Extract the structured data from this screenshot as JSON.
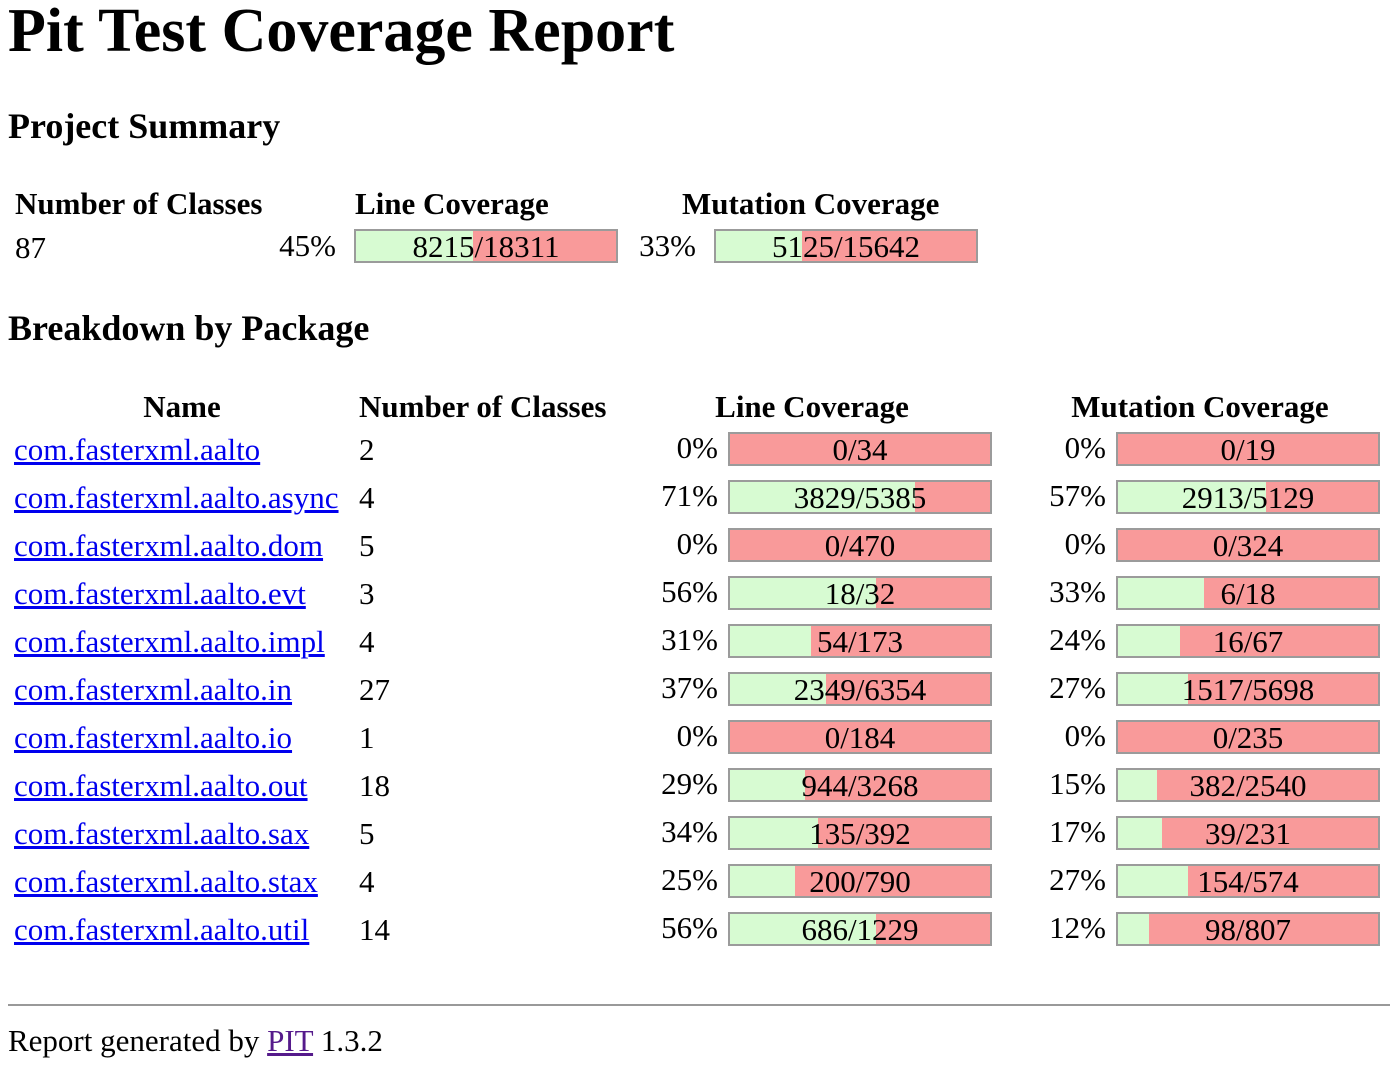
{
  "title": "Pit Test Coverage Report",
  "project_summary": {
    "heading": "Project Summary",
    "headers": {
      "classes": "Number of Classes",
      "line": "Line Coverage",
      "mutation": "Mutation Coverage"
    },
    "classes": "87",
    "line_pct": "45%",
    "line_ratio": "8215/18311",
    "line_fraction": 0.45,
    "mutation_pct": "33%",
    "mutation_ratio": "5125/15642",
    "mutation_fraction": 0.33
  },
  "breakdown": {
    "heading": "Breakdown by Package",
    "headers": {
      "name": "Name",
      "classes": "Number of Classes",
      "line": "Line Coverage",
      "mutation": "Mutation Coverage"
    },
    "packages": [
      {
        "name": "com.fasterxml.aalto",
        "classes": "2",
        "line_pct": "0%",
        "line_ratio": "0/34",
        "line_fraction": 0.0,
        "mut_pct": "0%",
        "mut_ratio": "0/19",
        "mut_fraction": 0.0
      },
      {
        "name": "com.fasterxml.aalto.async",
        "classes": "4",
        "line_pct": "71%",
        "line_ratio": "3829/5385",
        "line_fraction": 0.71,
        "mut_pct": "57%",
        "mut_ratio": "2913/5129",
        "mut_fraction": 0.57
      },
      {
        "name": "com.fasterxml.aalto.dom",
        "classes": "5",
        "line_pct": "0%",
        "line_ratio": "0/470",
        "line_fraction": 0.0,
        "mut_pct": "0%",
        "mut_ratio": "0/324",
        "mut_fraction": 0.0
      },
      {
        "name": "com.fasterxml.aalto.evt",
        "classes": "3",
        "line_pct": "56%",
        "line_ratio": "18/32",
        "line_fraction": 0.56,
        "mut_pct": "33%",
        "mut_ratio": "6/18",
        "mut_fraction": 0.33
      },
      {
        "name": "com.fasterxml.aalto.impl",
        "classes": "4",
        "line_pct": "31%",
        "line_ratio": "54/173",
        "line_fraction": 0.31,
        "mut_pct": "24%",
        "mut_ratio": "16/67",
        "mut_fraction": 0.24
      },
      {
        "name": "com.fasterxml.aalto.in",
        "classes": "27",
        "line_pct": "37%",
        "line_ratio": "2349/6354",
        "line_fraction": 0.37,
        "mut_pct": "27%",
        "mut_ratio": "1517/5698",
        "mut_fraction": 0.27
      },
      {
        "name": "com.fasterxml.aalto.io",
        "classes": "1",
        "line_pct": "0%",
        "line_ratio": "0/184",
        "line_fraction": 0.0,
        "mut_pct": "0%",
        "mut_ratio": "0/235",
        "mut_fraction": 0.0
      },
      {
        "name": "com.fasterxml.aalto.out",
        "classes": "18",
        "line_pct": "29%",
        "line_ratio": "944/3268",
        "line_fraction": 0.29,
        "mut_pct": "15%",
        "mut_ratio": "382/2540",
        "mut_fraction": 0.15
      },
      {
        "name": "com.fasterxml.aalto.sax",
        "classes": "5",
        "line_pct": "34%",
        "line_ratio": "135/392",
        "line_fraction": 0.34,
        "mut_pct": "17%",
        "mut_ratio": "39/231",
        "mut_fraction": 0.17
      },
      {
        "name": "com.fasterxml.aalto.stax",
        "classes": "4",
        "line_pct": "25%",
        "line_ratio": "200/790",
        "line_fraction": 0.25,
        "mut_pct": "27%",
        "mut_ratio": "154/574",
        "mut_fraction": 0.27
      },
      {
        "name": "com.fasterxml.aalto.util",
        "classes": "14",
        "line_pct": "56%",
        "line_ratio": "686/1229",
        "line_fraction": 0.56,
        "mut_pct": "12%",
        "mut_ratio": "98/807",
        "mut_fraction": 0.12
      }
    ]
  },
  "footer": {
    "prefix": "Report generated by",
    "link": "PIT",
    "version": "1.3.2"
  },
  "colors": {
    "covered": "#d7fbd2",
    "uncovered": "#f99a9a",
    "bar_border": "#9b9b9b",
    "link": "#0000ee",
    "visited_link": "#551a8b"
  }
}
